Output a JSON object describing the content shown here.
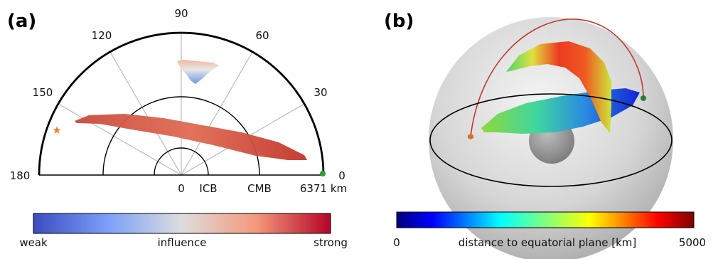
{
  "panel_a": {
    "label": "(a)",
    "angle_ticks": [
      "0",
      "30",
      "60",
      "90",
      "120",
      "150",
      "180"
    ],
    "radius_labels": [
      "0",
      "ICB",
      "CMB",
      "6371 km"
    ],
    "colorbar": {
      "left": "weak",
      "middle": "influence",
      "right": "strong"
    }
  },
  "panel_b": {
    "label": "(b)",
    "colorbar": {
      "left": "0",
      "middle": "distance to equatorial plane [km]",
      "right": "5000"
    }
  },
  "colors": {
    "influence_weak": "#3b4cc0",
    "influence_mid": "#dddddd",
    "influence_strong": "#b40426",
    "source_star": "#f07f1f",
    "receiver_dot": "#2ca02c",
    "ray_path": "#c0392b"
  }
}
